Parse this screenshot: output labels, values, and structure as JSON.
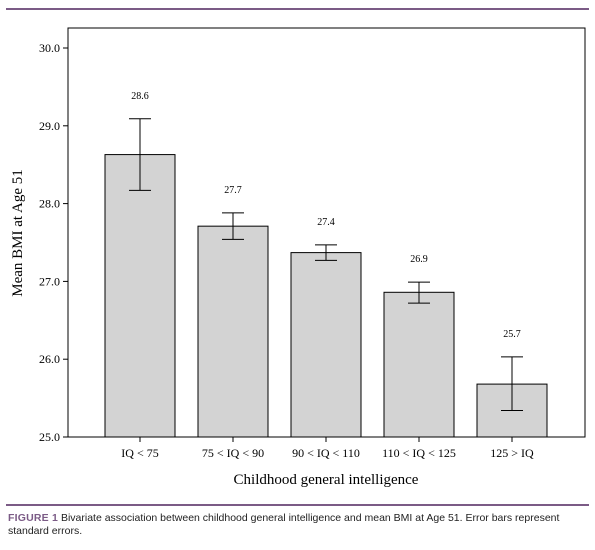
{
  "chart_data": {
    "type": "bar",
    "categories": [
      "IQ < 75",
      "75 < IQ < 90",
      "90 < IQ < 110",
      "110 < IQ < 125",
      "125 > IQ"
    ],
    "values": [
      28.63,
      27.71,
      27.37,
      26.86,
      25.68
    ],
    "data_labels": [
      "28.6",
      "27.7",
      "27.4",
      "26.9",
      "25.7"
    ],
    "error_bars": {
      "lower": [
        28.17,
        27.54,
        27.27,
        26.72,
        25.34
      ],
      "upper": [
        29.09,
        27.88,
        27.47,
        26.99,
        26.03
      ]
    },
    "xlabel": "Childhood general intelligence",
    "ylabel": "Mean BMI at Age 51",
    "ylim": [
      25.0,
      30.0
    ],
    "yticks": [
      "25.0",
      "26.0",
      "27.0",
      "28.0",
      "29.0",
      "30.0"
    ],
    "grid": false,
    "bar_color": "#d3d3d3"
  },
  "caption": {
    "label": "FIGURE 1",
    "text": "Bivariate association between childhood general intelligence and mean BMI at Age 51. Error bars represent standard errors."
  }
}
